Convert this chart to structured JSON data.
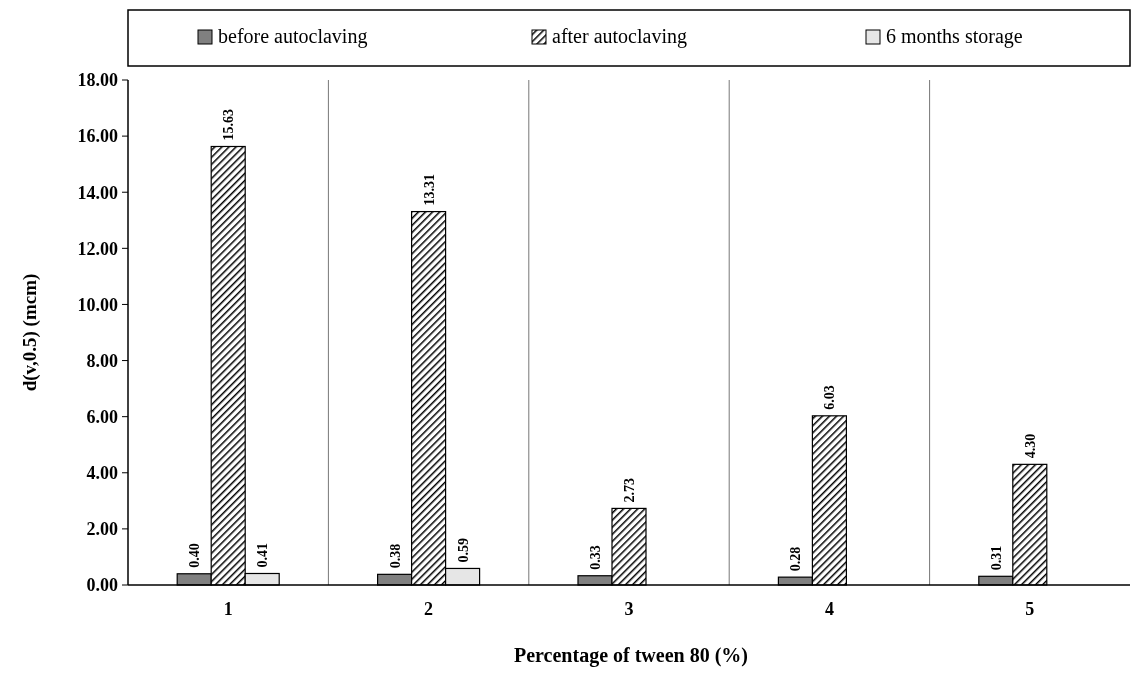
{
  "chart_data": {
    "type": "bar",
    "xlabel": "Percentage of tween 80 (%)",
    "ylabel": "d(v,0.5) (mcm)",
    "categories": [
      "1",
      "2",
      "3",
      "4",
      "5"
    ],
    "series": [
      {
        "name": "before autoclaving",
        "color": "#808080",
        "values": [
          0.4,
          0.38,
          0.33,
          0.28,
          0.31
        ],
        "value_labels": [
          "0.40",
          "0.38",
          "0.33",
          "0.28",
          "0.31"
        ]
      },
      {
        "name": "after autoclaving",
        "color": "#000000",
        "values": [
          15.63,
          13.31,
          2.73,
          6.03,
          4.3
        ],
        "value_labels": [
          "15.63",
          "13.31",
          "2.73",
          "6.03",
          "4.30"
        ]
      },
      {
        "name": "6 months storage",
        "color": "#e6e6e6",
        "values": [
          0.41,
          0.59,
          null,
          null,
          null
        ],
        "value_labels": [
          "0.41",
          "0.59",
          null,
          null,
          null
        ]
      }
    ],
    "ylim": [
      0,
      18
    ],
    "yticks": [
      {
        "value": 0,
        "label": "0.00"
      },
      {
        "value": 2,
        "label": "2.00"
      },
      {
        "value": 4,
        "label": "4.00"
      },
      {
        "value": 6,
        "label": "6.00"
      },
      {
        "value": 8,
        "label": "8.00"
      },
      {
        "value": 10,
        "label": "10.00"
      },
      {
        "value": 12,
        "label": "12.00"
      },
      {
        "value": 14,
        "label": "14.00"
      },
      {
        "value": 16,
        "label": "16.00"
      },
      {
        "value": 18,
        "label": "18.00"
      }
    ],
    "grid": "x",
    "legend": "top"
  }
}
